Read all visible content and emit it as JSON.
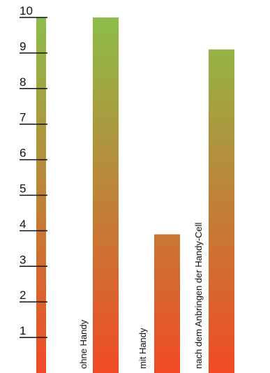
{
  "chart_data": {
    "type": "bar",
    "title": "",
    "xlabel": "",
    "ylabel": "",
    "ylim": [
      0,
      10
    ],
    "yticks": [
      "1",
      "2",
      "3",
      "4",
      "5",
      "6",
      "7",
      "8",
      "9",
      "10"
    ],
    "categories": [
      "ohne Handy",
      "mit Handy",
      "nach dem Anbringen der Handy-Cell"
    ],
    "values": [
      10,
      3.9,
      9.1
    ],
    "grid": false,
    "legend": "none",
    "colors": {
      "bar_top": "#8cbd4a",
      "bar_bottom": "#f04a25",
      "axis": "#111111"
    }
  }
}
